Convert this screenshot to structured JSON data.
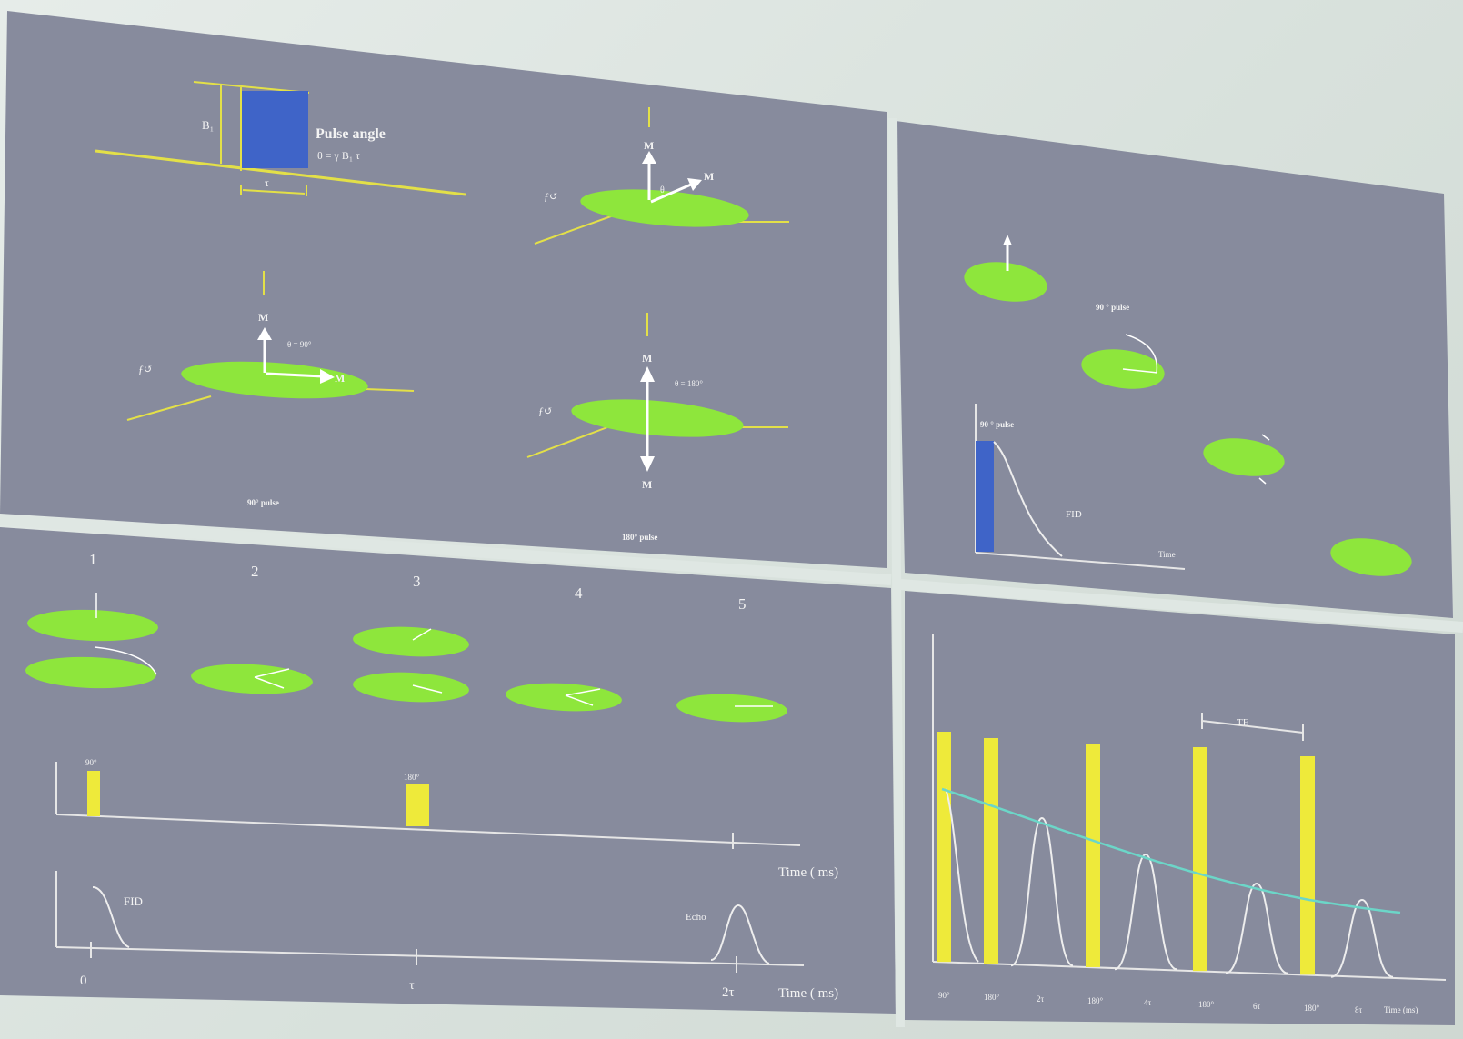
{
  "panel_a": {
    "pulse_angle_label": "Pulse angle",
    "pulse_formula": "θ = γ B₁ τ",
    "b1_label": "B₁",
    "tau_label": "τ",
    "m_label": "M",
    "theta_label": "θ",
    "theta_90_label": "θ = 90°",
    "theta_180_label": "θ = 180°",
    "caption_90": "90° pulse",
    "caption_180": "180° pulse"
  },
  "panel_b": {
    "pulse_label_top": "90 ° pulse",
    "pulse_label_plot": "90 ° pulse",
    "fid_label": "FID",
    "time_label": "Time"
  },
  "panel_c": {
    "steps": [
      "1",
      "2",
      "3",
      "4",
      "5"
    ],
    "pulse_90_label": "90°",
    "pulse_180_label": "180°",
    "time_axis_label": "Time ( ms)",
    "fid_label": "FID",
    "echo_label": "Echo",
    "tick_0": "0",
    "tick_tau": "τ",
    "tick_2tau": "2τ"
  },
  "panel_d": {
    "te_label": "TE",
    "x_labels": [
      "90°",
      "180°",
      "2τ",
      "180°",
      "4τ",
      "180°",
      "6τ",
      "180°",
      "8τ",
      "Time (ms)"
    ]
  },
  "colors": {
    "panel": "#878b9d",
    "disk": "#8ee63c",
    "pulse_yellow": "#eeea3a",
    "pulse_blue": "#3f64c8",
    "envelope": "#6cd6c8"
  }
}
